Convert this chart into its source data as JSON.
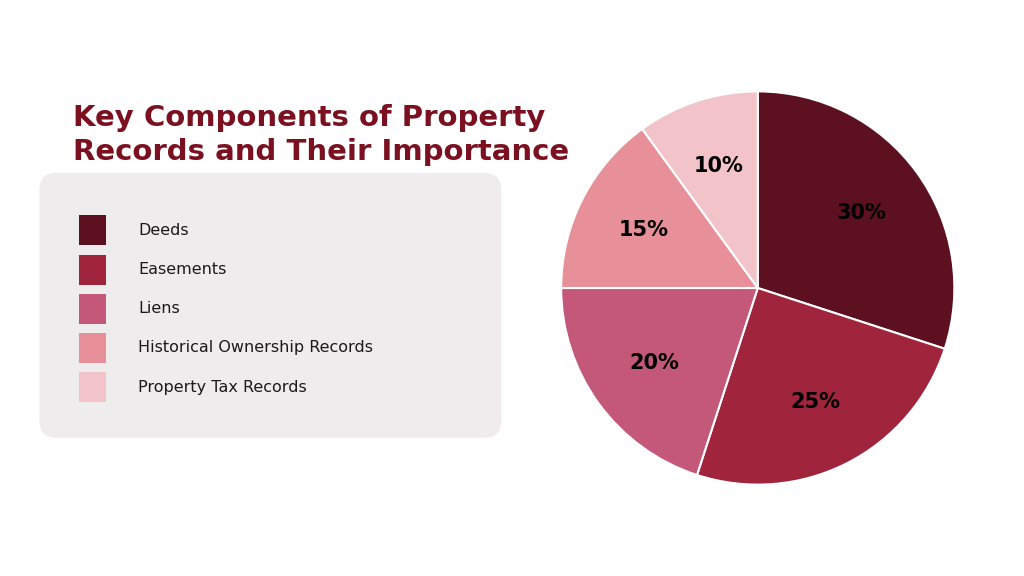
{
  "title": "Key Components of Property\nRecords and Their Importance",
  "title_color": "#7B1020",
  "title_fontsize": 21,
  "title_fontweight": "bold",
  "labels": [
    "Deeds",
    "Easements",
    "Liens",
    "Historical Ownership Records",
    "Property Tax Records"
  ],
  "values": [
    30,
    25,
    20,
    15,
    10
  ],
  "colors": [
    "#5C1020",
    "#A0243C",
    "#C45878",
    "#E8909A",
    "#F2C4CA"
  ],
  "pct_labels": [
    "30%",
    "25%",
    "20%",
    "15%",
    "10%"
  ],
  "background_color": "#ffffff",
  "legend_bg_color": "#eeecec",
  "startangle": 90,
  "figsize": [
    10.24,
    5.76
  ],
  "dpi": 100
}
